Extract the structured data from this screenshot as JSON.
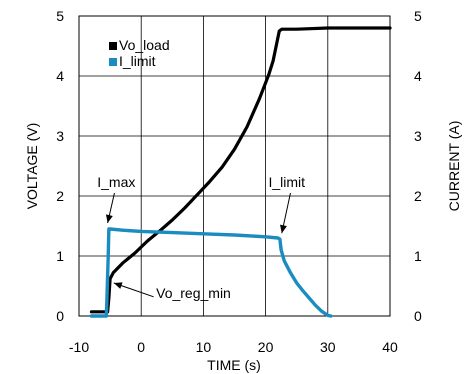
{
  "chart_data": {
    "type": "line",
    "xlabel": "TIME (s)",
    "ylabel_left": "VOLTAGE (V)",
    "ylabel_right": "CURRENT (A)",
    "xlim": [
      -10,
      40
    ],
    "ylim_left": [
      0,
      5
    ],
    "ylim_right": [
      0,
      5
    ],
    "x_ticks": [
      -10,
      0,
      10,
      20,
      30,
      40
    ],
    "y_ticks_left": [
      0,
      1,
      2,
      3,
      4,
      5
    ],
    "y_ticks_right": [
      0,
      1,
      2,
      3,
      4,
      5
    ],
    "grid": true,
    "legend_position": "top-left",
    "series": [
      {
        "name": "Vo_load",
        "axis": "left",
        "color": "#000000",
        "x": [
          -8,
          -5.4,
          -5.2,
          -5.0,
          -4.5,
          -3,
          -1,
          0,
          1,
          3,
          5,
          7,
          9,
          11,
          13,
          15,
          17,
          19,
          20.5,
          21.2,
          21.8,
          22.2,
          22.6,
          25,
          30,
          35,
          40
        ],
        "y": [
          0.07,
          0.07,
          0.3,
          0.62,
          0.72,
          0.88,
          1.05,
          1.15,
          1.25,
          1.42,
          1.6,
          1.8,
          2.02,
          2.24,
          2.48,
          2.78,
          3.15,
          3.62,
          4.02,
          4.25,
          4.55,
          4.75,
          4.78,
          4.78,
          4.8,
          4.8,
          4.8
        ]
      },
      {
        "name": "I_limit",
        "axis": "right",
        "color": "#1b8cc0",
        "x": [
          -8,
          -5.6,
          -5.3,
          -5.2,
          -5.0,
          -3,
          0,
          5,
          10,
          15,
          20,
          22,
          22.3,
          22.5,
          23,
          24,
          25,
          26,
          27,
          28,
          29,
          30,
          30.5
        ],
        "y": [
          0.0,
          0.0,
          1.0,
          1.45,
          1.45,
          1.43,
          1.41,
          1.39,
          1.37,
          1.35,
          1.32,
          1.3,
          1.28,
          1.1,
          0.92,
          0.72,
          0.55,
          0.42,
          0.3,
          0.18,
          0.08,
          0.01,
          0.0
        ]
      }
    ],
    "annotations": [
      {
        "text": "I_max",
        "x": -4,
        "y": 2.15
      },
      {
        "text": "I_limit",
        "x": 23.4,
        "y": 2.15
      },
      {
        "text": "Vo_reg_min",
        "x": 2.4,
        "y": 0.3
      }
    ]
  }
}
